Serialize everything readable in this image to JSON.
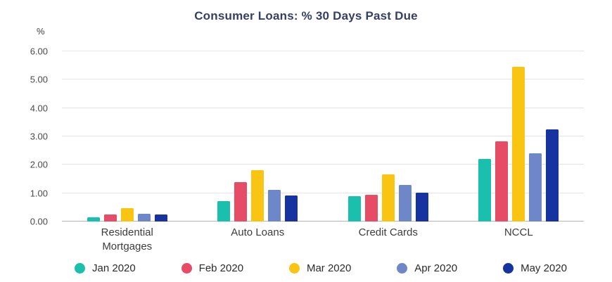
{
  "chart_data": {
    "type": "bar",
    "title": "Consumer Loans: % 30 Days Past Due",
    "ylabel": "%",
    "xlabel": "",
    "categories": [
      "Residential Mortgages",
      "Auto Loans",
      "Credit Cards",
      "NCCL"
    ],
    "series": [
      {
        "name": "Jan 2020",
        "color": "#1abfae",
        "values": [
          0.15,
          0.72,
          0.9,
          2.2
        ]
      },
      {
        "name": "Feb 2020",
        "color": "#e64c66",
        "values": [
          0.25,
          1.38,
          0.95,
          2.82
        ]
      },
      {
        "name": "Mar 2020",
        "color": "#f9c412",
        "values": [
          0.47,
          1.8,
          1.65,
          5.45
        ]
      },
      {
        "name": "Apr 2020",
        "color": "#6d87c8",
        "values": [
          0.27,
          1.12,
          1.3,
          2.4
        ]
      },
      {
        "name": "May 2020",
        "color": "#1633a0",
        "values": [
          0.25,
          0.93,
          1.02,
          3.25
        ]
      }
    ],
    "ylim": [
      0,
      6
    ],
    "ytick_step": 1,
    "ytick_labels": [
      "0.00",
      "1.00",
      "2.00",
      "3.00",
      "4.00",
      "5.00",
      "6.00"
    ],
    "grid": true,
    "legend_position": "bottom"
  }
}
